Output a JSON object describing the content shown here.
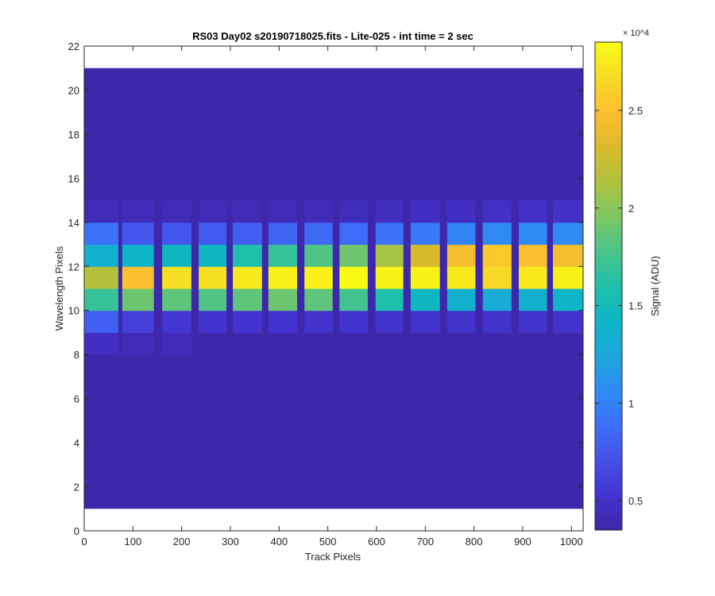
{
  "chart_data": {
    "type": "heatmap",
    "title": "RS03 Day02  s20190718025.fits - Lite-025 - int time = 2 sec",
    "xlabel": "Track Pixels",
    "ylabel": "Wavelength Pixels",
    "xlim": [
      0,
      1024
    ],
    "ylim": [
      0,
      22
    ],
    "xticks": [
      0,
      100,
      200,
      300,
      400,
      500,
      600,
      700,
      800,
      900,
      1000
    ],
    "yticks": [
      0,
      2,
      4,
      6,
      8,
      10,
      12,
      14,
      16,
      18,
      20,
      22
    ],
    "data_row_range": [
      1,
      21
    ],
    "background_value": 3600,
    "colorbar": {
      "label": "Signal (ADU)",
      "exponent_label": "× 10^4",
      "ticks": [
        0.5,
        1,
        1.5,
        2,
        2.5
      ],
      "min": 3500,
      "max": 28500,
      "colormap": [
        "#3e26a8",
        "#4433cf",
        "#4550e7",
        "#3d6ffa",
        "#2e8cf4",
        "#1ea6db",
        "#0cb6c5",
        "#1fbfab",
        "#4ac48a",
        "#7fc663",
        "#b0c23d",
        "#dcb92b",
        "#fcbf30",
        "#f7db25",
        "#f9fb15"
      ]
    },
    "bands": [
      {
        "x": [
          0,
          70
        ],
        "profile": [
          [
            8,
            9,
            4600
          ],
          [
            9,
            10,
            8000
          ],
          [
            10,
            11,
            17000
          ],
          [
            11,
            12,
            21500
          ],
          [
            12,
            13,
            13500
          ],
          [
            13,
            14,
            9000
          ],
          [
            14,
            15,
            4300
          ]
        ]
      },
      {
        "x": [
          78,
          143
        ],
        "profile": [
          [
            8,
            9,
            4200
          ],
          [
            9,
            10,
            6000
          ],
          [
            10,
            11,
            19000
          ],
          [
            11,
            12,
            25000
          ],
          [
            12,
            13,
            14000
          ],
          [
            13,
            14,
            7500
          ],
          [
            14,
            15,
            4300
          ]
        ]
      },
      {
        "x": [
          160,
          220
        ],
        "profile": [
          [
            8,
            9,
            4200
          ],
          [
            9,
            10,
            5500
          ],
          [
            10,
            11,
            18500
          ],
          [
            11,
            12,
            27000
          ],
          [
            12,
            13,
            14500
          ],
          [
            13,
            14,
            7500
          ],
          [
            14,
            15,
            4200
          ]
        ]
      },
      {
        "x": [
          235,
          292
        ],
        "profile": [
          [
            9,
            10,
            5300
          ],
          [
            10,
            11,
            18000
          ],
          [
            11,
            12,
            27000
          ],
          [
            12,
            13,
            14500
          ],
          [
            13,
            14,
            7700
          ],
          [
            14,
            15,
            4200
          ]
        ]
      },
      {
        "x": [
          305,
          365
        ],
        "profile": [
          [
            9,
            10,
            5300
          ],
          [
            10,
            11,
            18500
          ],
          [
            11,
            12,
            27500
          ],
          [
            12,
            13,
            16000
          ],
          [
            13,
            14,
            8000
          ],
          [
            14,
            15,
            4200
          ]
        ]
      },
      {
        "x": [
          378,
          437
        ],
        "profile": [
          [
            9,
            10,
            5300
          ],
          [
            10,
            11,
            19000
          ],
          [
            11,
            12,
            28000
          ],
          [
            12,
            13,
            17000
          ],
          [
            13,
            14,
            8200
          ],
          [
            14,
            15,
            4200
          ]
        ]
      },
      {
        "x": [
          452,
          510
        ],
        "profile": [
          [
            9,
            10,
            5300
          ],
          [
            10,
            11,
            18500
          ],
          [
            11,
            12,
            28000
          ],
          [
            12,
            13,
            18000
          ],
          [
            13,
            14,
            8500
          ],
          [
            14,
            15,
            4300
          ]
        ]
      },
      {
        "x": [
          524,
          582
        ],
        "profile": [
          [
            9,
            10,
            5300
          ],
          [
            10,
            11,
            17500
          ],
          [
            11,
            12,
            28500
          ],
          [
            12,
            13,
            19000
          ],
          [
            13,
            14,
            8600
          ],
          [
            14,
            15,
            4400
          ]
        ]
      },
      {
        "x": [
          598,
          655
        ],
        "profile": [
          [
            9,
            10,
            5200
          ],
          [
            10,
            11,
            16000
          ],
          [
            11,
            12,
            28000
          ],
          [
            12,
            13,
            21000
          ],
          [
            13,
            14,
            9000
          ],
          [
            14,
            15,
            4500
          ]
        ]
      },
      {
        "x": [
          670,
          730
        ],
        "profile": [
          [
            9,
            10,
            5200
          ],
          [
            10,
            11,
            14500
          ],
          [
            11,
            12,
            28000
          ],
          [
            12,
            13,
            23000
          ],
          [
            13,
            14,
            9500
          ],
          [
            14,
            15,
            4600
          ]
        ]
      },
      {
        "x": [
          745,
          803
        ],
        "profile": [
          [
            9,
            10,
            5100
          ],
          [
            10,
            11,
            13500
          ],
          [
            11,
            12,
            27500
          ],
          [
            12,
            13,
            24500
          ],
          [
            13,
            14,
            10000
          ],
          [
            14,
            15,
            4700
          ]
        ]
      },
      {
        "x": [
          818,
          877
        ],
        "profile": [
          [
            9,
            10,
            5100
          ],
          [
            10,
            11,
            13000
          ],
          [
            11,
            12,
            26500
          ],
          [
            12,
            13,
            25500
          ],
          [
            13,
            14,
            10500
          ],
          [
            14,
            15,
            4800
          ]
        ]
      },
      {
        "x": [
          892,
          950
        ],
        "profile": [
          [
            9,
            10,
            5100
          ],
          [
            10,
            11,
            13500
          ],
          [
            11,
            12,
            27500
          ],
          [
            12,
            13,
            25000
          ],
          [
            13,
            14,
            10500
          ],
          [
            14,
            15,
            4900
          ]
        ]
      },
      {
        "x": [
          962,
          1024
        ],
        "profile": [
          [
            9,
            10,
            5200
          ],
          [
            10,
            11,
            14000
          ],
          [
            11,
            12,
            28000
          ],
          [
            12,
            13,
            24500
          ],
          [
            13,
            14,
            10500
          ],
          [
            14,
            15,
            4900
          ]
        ]
      }
    ]
  }
}
